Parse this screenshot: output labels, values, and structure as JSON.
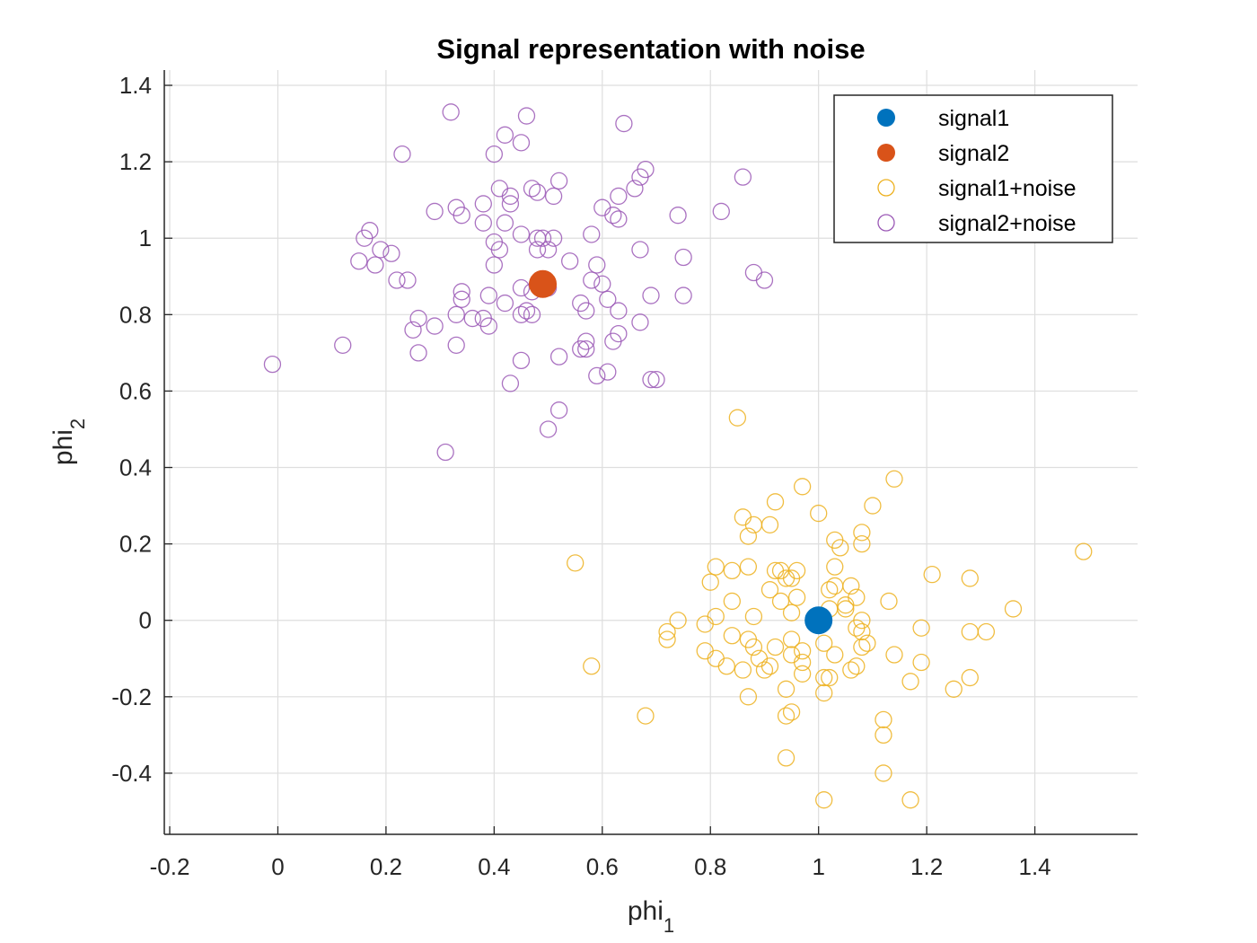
{
  "chart_data": {
    "type": "scatter",
    "title": "Signal representation with noise",
    "xlabel": {
      "base": "phi",
      "sub": "1"
    },
    "ylabel": {
      "base": "phi",
      "sub": "2"
    },
    "xlim": [
      -0.21,
      1.59
    ],
    "ylim": [
      -0.56,
      1.44
    ],
    "xticks": [
      -0.2,
      0,
      0.2,
      0.4,
      0.6,
      0.8,
      1,
      1.2,
      1.4
    ],
    "xtick_labels": [
      "-0.2",
      "0",
      "0.2",
      "0.4",
      "0.6",
      "0.8",
      "1",
      "1.2",
      "1.4"
    ],
    "yticks": [
      -0.4,
      -0.2,
      0,
      0.2,
      0.4,
      0.6,
      0.8,
      1,
      1.2,
      1.4
    ],
    "ytick_labels": [
      "-0.4",
      "-0.2",
      "0",
      "0.2",
      "0.4",
      "0.6",
      "0.8",
      "1",
      "1.2",
      "1.4"
    ],
    "grid": true,
    "legend_position": "top-right",
    "series": [
      {
        "name": "signal1",
        "marker": "filled-circle",
        "color": "#0072BD",
        "points": [
          [
            1.0,
            0.0
          ]
        ]
      },
      {
        "name": "signal2",
        "marker": "filled-circle",
        "color": "#D95319",
        "points": [
          [
            0.49,
            0.88
          ]
        ]
      },
      {
        "name": "signal1+noise",
        "marker": "open-circle",
        "color": "#EDB120",
        "points": [
          [
            0.85,
            0.53
          ],
          [
            1.14,
            0.37
          ],
          [
            0.97,
            0.35
          ],
          [
            0.92,
            0.31
          ],
          [
            1.1,
            0.3
          ],
          [
            0.91,
            0.25
          ],
          [
            0.86,
            0.27
          ],
          [
            0.87,
            0.22
          ],
          [
            0.88,
            0.25
          ],
          [
            1.0,
            0.28
          ],
          [
            1.49,
            0.18
          ],
          [
            1.08,
            0.23
          ],
          [
            1.08,
            0.2
          ],
          [
            1.03,
            0.21
          ],
          [
            1.04,
            0.19
          ],
          [
            0.55,
            0.15
          ],
          [
            0.81,
            0.14
          ],
          [
            0.84,
            0.13
          ],
          [
            0.87,
            0.14
          ],
          [
            0.92,
            0.13
          ],
          [
            0.93,
            0.13
          ],
          [
            0.96,
            0.13
          ],
          [
            1.03,
            0.14
          ],
          [
            1.21,
            0.12
          ],
          [
            1.28,
            0.11
          ],
          [
            0.8,
            0.1
          ],
          [
            0.94,
            0.11
          ],
          [
            0.95,
            0.11
          ],
          [
            0.91,
            0.08
          ],
          [
            1.02,
            0.08
          ],
          [
            1.03,
            0.09
          ],
          [
            1.06,
            0.09
          ],
          [
            0.84,
            0.05
          ],
          [
            0.93,
            0.05
          ],
          [
            0.96,
            0.06
          ],
          [
            1.05,
            0.04
          ],
          [
            1.07,
            0.06
          ],
          [
            1.13,
            0.05
          ],
          [
            1.36,
            0.03
          ],
          [
            0.74,
            0.0
          ],
          [
            0.81,
            0.01
          ],
          [
            0.88,
            0.01
          ],
          [
            0.95,
            0.02
          ],
          [
            1.0,
            0.01
          ],
          [
            1.02,
            0.03
          ],
          [
            1.05,
            0.03
          ],
          [
            1.08,
            0.0
          ],
          [
            0.72,
            -0.03
          ],
          [
            0.72,
            -0.05
          ],
          [
            0.79,
            -0.01
          ],
          [
            1.07,
            -0.02
          ],
          [
            1.08,
            -0.03
          ],
          [
            1.19,
            -0.02
          ],
          [
            1.28,
            -0.03
          ],
          [
            1.31,
            -0.03
          ],
          [
            0.84,
            -0.04
          ],
          [
            0.87,
            -0.05
          ],
          [
            0.95,
            -0.05
          ],
          [
            1.01,
            -0.06
          ],
          [
            1.09,
            -0.06
          ],
          [
            0.79,
            -0.08
          ],
          [
            0.88,
            -0.07
          ],
          [
            0.92,
            -0.07
          ],
          [
            0.97,
            -0.08
          ],
          [
            1.08,
            -0.07
          ],
          [
            0.81,
            -0.1
          ],
          [
            0.89,
            -0.1
          ],
          [
            0.95,
            -0.09
          ],
          [
            1.03,
            -0.09
          ],
          [
            1.14,
            -0.09
          ],
          [
            0.58,
            -0.12
          ],
          [
            0.83,
            -0.12
          ],
          [
            0.86,
            -0.13
          ],
          [
            0.9,
            -0.13
          ],
          [
            0.91,
            -0.12
          ],
          [
            0.97,
            -0.11
          ],
          [
            1.06,
            -0.13
          ],
          [
            1.07,
            -0.12
          ],
          [
            1.19,
            -0.11
          ],
          [
            0.97,
            -0.14
          ],
          [
            1.01,
            -0.15
          ],
          [
            1.02,
            -0.15
          ],
          [
            1.28,
            -0.15
          ],
          [
            1.17,
            -0.16
          ],
          [
            0.94,
            -0.18
          ],
          [
            1.25,
            -0.18
          ],
          [
            0.87,
            -0.2
          ],
          [
            1.01,
            -0.19
          ],
          [
            0.68,
            -0.25
          ],
          [
            0.94,
            -0.25
          ],
          [
            0.95,
            -0.24
          ],
          [
            1.12,
            -0.26
          ],
          [
            1.12,
            -0.3
          ],
          [
            0.94,
            -0.36
          ],
          [
            1.12,
            -0.4
          ],
          [
            1.01,
            -0.47
          ],
          [
            1.17,
            -0.47
          ]
        ]
      },
      {
        "name": "signal2+noise",
        "marker": "open-circle",
        "color": "#9B59B6",
        "points": [
          [
            0.32,
            1.33
          ],
          [
            0.46,
            1.32
          ],
          [
            0.64,
            1.3
          ],
          [
            0.42,
            1.27
          ],
          [
            0.45,
            1.25
          ],
          [
            0.23,
            1.22
          ],
          [
            0.4,
            1.22
          ],
          [
            0.68,
            1.18
          ],
          [
            0.67,
            1.16
          ],
          [
            0.86,
            1.16
          ],
          [
            0.52,
            1.15
          ],
          [
            0.41,
            1.13
          ],
          [
            0.47,
            1.13
          ],
          [
            0.66,
            1.13
          ],
          [
            0.48,
            1.12
          ],
          [
            0.51,
            1.11
          ],
          [
            0.63,
            1.11
          ],
          [
            0.43,
            1.11
          ],
          [
            0.43,
            1.09
          ],
          [
            0.38,
            1.09
          ],
          [
            0.33,
            1.08
          ],
          [
            0.6,
            1.08
          ],
          [
            0.29,
            1.07
          ],
          [
            0.82,
            1.07
          ],
          [
            0.34,
            1.06
          ],
          [
            0.62,
            1.06
          ],
          [
            0.63,
            1.05
          ],
          [
            0.74,
            1.06
          ],
          [
            0.38,
            1.04
          ],
          [
            0.42,
            1.04
          ],
          [
            0.17,
            1.02
          ],
          [
            0.16,
            1.0
          ],
          [
            0.45,
            1.01
          ],
          [
            0.58,
            1.01
          ],
          [
            0.48,
            1.0
          ],
          [
            0.49,
            1.0
          ],
          [
            0.51,
            1.0
          ],
          [
            0.4,
            0.99
          ],
          [
            0.19,
            0.97
          ],
          [
            0.41,
            0.97
          ],
          [
            0.48,
            0.97
          ],
          [
            0.5,
            0.97
          ],
          [
            0.67,
            0.97
          ],
          [
            0.21,
            0.96
          ],
          [
            0.15,
            0.94
          ],
          [
            0.18,
            0.93
          ],
          [
            0.4,
            0.93
          ],
          [
            0.54,
            0.94
          ],
          [
            0.59,
            0.93
          ],
          [
            0.75,
            0.95
          ],
          [
            0.88,
            0.91
          ],
          [
            0.22,
            0.89
          ],
          [
            0.24,
            0.89
          ],
          [
            0.9,
            0.89
          ],
          [
            0.58,
            0.89
          ],
          [
            0.6,
            0.88
          ],
          [
            0.45,
            0.87
          ],
          [
            0.47,
            0.86
          ],
          [
            0.48,
            0.88
          ],
          [
            0.5,
            0.87
          ],
          [
            0.34,
            0.86
          ],
          [
            0.39,
            0.85
          ],
          [
            0.34,
            0.84
          ],
          [
            0.61,
            0.84
          ],
          [
            0.69,
            0.85
          ],
          [
            0.75,
            0.85
          ],
          [
            0.42,
            0.83
          ],
          [
            0.56,
            0.83
          ],
          [
            0.57,
            0.81
          ],
          [
            0.63,
            0.81
          ],
          [
            0.46,
            0.81
          ],
          [
            0.45,
            0.8
          ],
          [
            0.47,
            0.8
          ],
          [
            0.33,
            0.8
          ],
          [
            0.36,
            0.79
          ],
          [
            0.38,
            0.79
          ],
          [
            0.39,
            0.77
          ],
          [
            0.26,
            0.79
          ],
          [
            0.25,
            0.76
          ],
          [
            0.29,
            0.77
          ],
          [
            0.67,
            0.78
          ],
          [
            0.63,
            0.75
          ],
          [
            0.62,
            0.73
          ],
          [
            0.57,
            0.73
          ],
          [
            0.57,
            0.71
          ],
          [
            0.56,
            0.71
          ],
          [
            0.12,
            0.72
          ],
          [
            0.33,
            0.72
          ],
          [
            0.26,
            0.7
          ],
          [
            0.52,
            0.69
          ],
          [
            0.45,
            0.68
          ],
          [
            -0.01,
            0.67
          ],
          [
            0.59,
            0.64
          ],
          [
            0.61,
            0.65
          ],
          [
            0.69,
            0.63
          ],
          [
            0.7,
            0.63
          ],
          [
            0.43,
            0.62
          ],
          [
            0.52,
            0.55
          ],
          [
            0.5,
            0.5
          ],
          [
            0.31,
            0.44
          ]
        ]
      }
    ]
  }
}
